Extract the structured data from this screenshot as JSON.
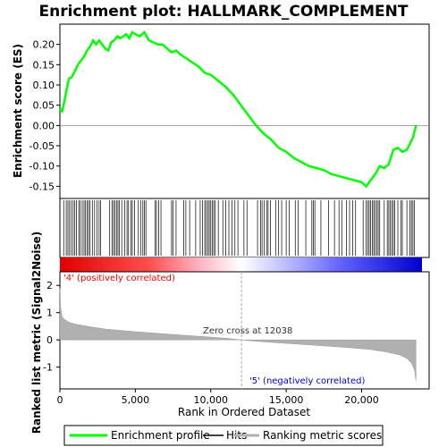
{
  "chart_data": {
    "type": "line",
    "title": "Enrichment plot: HALLMARK_COMPLEMENT",
    "top_panel": {
      "ylabel": "Enrichment score (ES)",
      "ylim": [
        -0.18,
        0.25
      ],
      "yticks": [
        0.2,
        0.15,
        0.1,
        0.05,
        0.0,
        -0.05,
        -0.1,
        -0.15
      ],
      "ytick_labels": [
        "0.20",
        "0.15",
        "0.10",
        "0.05",
        "0.00",
        "-0.05",
        "-0.10",
        "-0.15"
      ],
      "series": [
        {
          "name": "Enrichment profile",
          "color": "#00ff00",
          "x": [
            0,
            150,
            300,
            450,
            600,
            800,
            1000,
            1200,
            1400,
            1600,
            1800,
            2000,
            2200,
            2400,
            2600,
            2800,
            3000,
            3200,
            3400,
            3600,
            3800,
            4000,
            4200,
            4400,
            4600,
            4800,
            5000,
            5300,
            5600,
            5900,
            6200,
            6500,
            6800,
            7100,
            7400,
            7700,
            8000,
            8400,
            8800,
            9200,
            9600,
            10000,
            10500,
            11000,
            11500,
            12000,
            12500,
            13000,
            13500,
            14000,
            14500,
            15000,
            15500,
            16000,
            16500,
            17000,
            17500,
            18000,
            18500,
            19000,
            19500,
            20000,
            20300,
            20600,
            20900,
            21200,
            21500,
            21800,
            22100,
            22400,
            22700,
            23000,
            23200,
            23400,
            23600
          ],
          "y": [
            0.04,
            0.035,
            0.06,
            0.09,
            0.115,
            0.12,
            0.135,
            0.15,
            0.16,
            0.17,
            0.185,
            0.195,
            0.21,
            0.2,
            0.21,
            0.2,
            0.19,
            0.185,
            0.205,
            0.21,
            0.22,
            0.215,
            0.22,
            0.225,
            0.215,
            0.23,
            0.225,
            0.22,
            0.23,
            0.21,
            0.205,
            0.2,
            0.2,
            0.19,
            0.18,
            0.185,
            0.175,
            0.165,
            0.155,
            0.145,
            0.13,
            0.125,
            0.11,
            0.095,
            0.075,
            0.05,
            0.025,
            0.0,
            -0.02,
            -0.035,
            -0.055,
            -0.065,
            -0.08,
            -0.09,
            -0.1,
            -0.105,
            -0.11,
            -0.12,
            -0.125,
            -0.13,
            -0.135,
            -0.14,
            -0.15,
            -0.135,
            -0.12,
            -0.1,
            -0.105,
            -0.095,
            -0.06,
            -0.055,
            -0.065,
            -0.06,
            -0.045,
            -0.03,
            0.0
          ]
        }
      ]
    },
    "bottom_panel": {
      "ylabel": "Ranked list metric (Signal2Noise)",
      "ylim": [
        -1.8,
        2.5
      ],
      "yticks": [
        2,
        1,
        0,
        -1
      ],
      "ytick_labels": [
        "2",
        "1",
        "0",
        "-1"
      ],
      "xlabel": "Rank in Ordered Dataset",
      "xlim": [
        0,
        24000
      ],
      "xticks": [
        0,
        5000,
        10000,
        15000,
        20000
      ],
      "xtick_labels": [
        "0",
        "5,000",
        "10,000",
        "15,000",
        "20,000"
      ],
      "series_name": "Ranking metric scores",
      "metric_x": [
        0,
        50,
        150,
        300,
        600,
        1000,
        2000,
        3000,
        5000,
        7000,
        9000,
        11000,
        12038,
        13000,
        15000,
        17000,
        19000,
        20500,
        21500,
        22500,
        23000,
        23300,
        23500,
        23600
      ],
      "metric_y": [
        1.9,
        1.2,
        0.85,
        0.75,
        0.65,
        0.58,
        0.48,
        0.4,
        0.3,
        0.22,
        0.14,
        0.06,
        0.0,
        -0.05,
        -0.13,
        -0.2,
        -0.28,
        -0.35,
        -0.43,
        -0.55,
        -0.68,
        -0.85,
        -1.1,
        -1.5
      ],
      "zero_cross_label": "Zero cross at 12038",
      "zero_cross_x": 12038,
      "positive_label": "'4' (positively correlated)",
      "negative_label": "'5' (negatively correlated)"
    },
    "hits": [
      250,
      420,
      530,
      640,
      760,
      880,
      990,
      1100,
      1250,
      1350,
      1480,
      1600,
      1700,
      1800,
      1900,
      2000,
      2150,
      2300,
      2450,
      2600,
      2700,
      3300,
      3450,
      3550,
      3650,
      3750,
      3850,
      3950,
      4100,
      4300,
      4450,
      4550,
      4700,
      4800,
      4950,
      5200,
      5350,
      5500,
      5600,
      5700,
      6300,
      6400,
      6550,
      6700,
      7400,
      7500,
      7700,
      8200,
      8350,
      8600,
      9000,
      9300,
      9450,
      9600,
      9700,
      9800,
      9900,
      10000,
      10100,
      10200,
      10300,
      10500,
      10800,
      11000,
      11200,
      11400,
      11600,
      11800,
      12200,
      12400,
      13100,
      13300,
      13400,
      13550,
      13700,
      13800,
      13950,
      14300,
      14500,
      14700,
      15000,
      15200,
      15600,
      15800,
      16300,
      16700,
      16800,
      16900,
      17300,
      17800,
      18200,
      18500,
      18700,
      19000,
      19200,
      19400,
      19600,
      20100,
      20300,
      20400,
      20500,
      20600,
      20700,
      20800,
      20900,
      21000,
      21100,
      21200,
      21500,
      21700,
      21800,
      21900,
      22000,
      22100,
      22200,
      22400,
      22600,
      22700,
      23000,
      23200,
      23300,
      23400,
      23500
    ],
    "legend": [
      "Enrichment profile",
      "Hits",
      "Ranking metric scores"
    ],
    "legend_placement": "bottom",
    "colors": {
      "profile": "#00ff00",
      "hits": "#000000",
      "metric_fill": "#b0b0b0",
      "positive": "#ff0000",
      "negative": "#0000ff",
      "positive_label": "#ff0000",
      "negative_label": "#0000cc"
    }
  }
}
